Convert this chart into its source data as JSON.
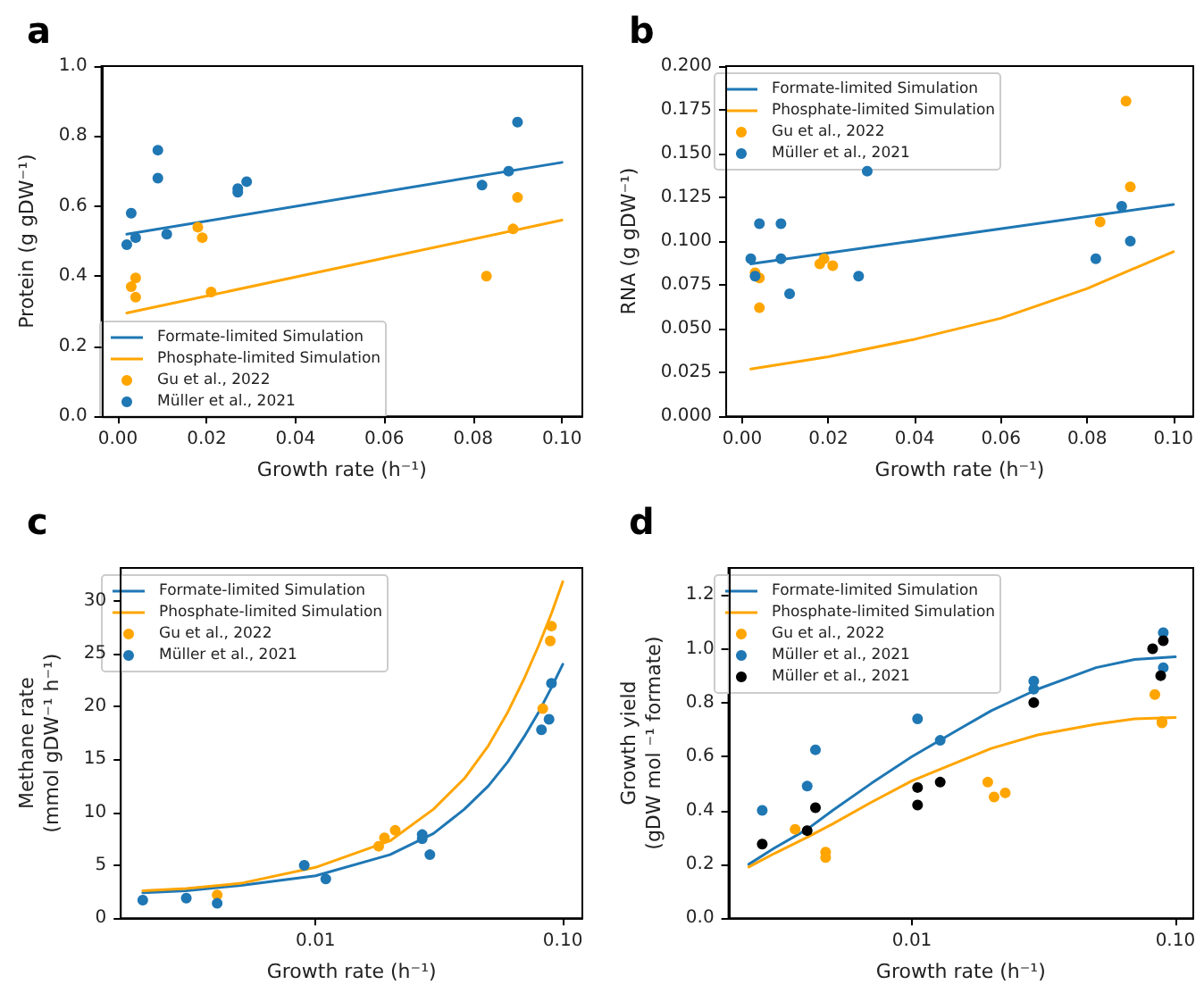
{
  "chart_data": [
    {
      "type": "scatter",
      "title": "a",
      "xlabel": "Growth rate (h⁻¹)",
      "ylabel": "Protein (g gDW⁻¹)",
      "xlim": [
        -0.0037,
        0.1046
      ],
      "ylim": [
        0,
        1
      ],
      "xticks": [
        {
          "value": 0,
          "label": "0.00"
        },
        {
          "value": 0.02,
          "label": "0.02"
        },
        {
          "value": 0.04,
          "label": "0.04"
        },
        {
          "value": 0.06,
          "label": "0.06"
        },
        {
          "value": 0.08,
          "label": "0.08"
        },
        {
          "value": 0.1,
          "label": "0.10"
        }
      ],
      "yticks": [
        {
          "value": 0,
          "label": "0.0"
        },
        0.2,
        0.4,
        0.6,
        0.8,
        {
          "value": 1,
          "label": "1.0"
        }
      ],
      "legend": "bottom left",
      "marker": "circle",
      "series": [
        {
          "name": "Formate-limited Simulation",
          "type": "line",
          "marker": "none",
          "color": "#1f77b4",
          "x": [
            0.002,
            0.1
          ],
          "values": [
            0.52,
            0.725
          ]
        },
        {
          "name": "Phosphate-limited Simulation",
          "type": "line",
          "marker": "none",
          "color": "#ffa500",
          "x": [
            0.002,
            0.1
          ],
          "values": [
            0.295,
            0.56
          ]
        },
        {
          "name": "Gu et al., 2022",
          "color": "#ffa500",
          "x": [
            0.003,
            0.004,
            0.004,
            0.018,
            0.019,
            0.021,
            0.083,
            0.089,
            0.09
          ],
          "values": [
            0.37,
            0.395,
            0.34,
            0.54,
            0.51,
            0.355,
            0.4,
            0.535,
            0.625
          ]
        },
        {
          "name": "Müller et al., 2021",
          "color": "#1f77b4",
          "x": [
            0.002,
            0.003,
            0.004,
            0.009,
            0.009,
            0.011,
            0.027,
            0.027,
            0.029,
            0.082,
            0.088,
            0.09
          ],
          "values": [
            0.49,
            0.58,
            0.51,
            0.76,
            0.68,
            0.52,
            0.65,
            0.64,
            0.67,
            0.66,
            0.7,
            0.84
          ]
        }
      ]
    },
    {
      "type": "scatter",
      "title": "b",
      "xlabel": "Growth rate (h⁻¹)",
      "ylabel": "RNA (g gDW⁻¹)",
      "xlim": [
        -0.0037,
        0.1046
      ],
      "ylim": [
        0,
        0.2
      ],
      "xticks": [
        {
          "value": 0,
          "label": "0.00"
        },
        {
          "value": 0.02,
          "label": "0.02"
        },
        {
          "value": 0.04,
          "label": "0.04"
        },
        {
          "value": 0.06,
          "label": "0.06"
        },
        {
          "value": 0.08,
          "label": "0.08"
        },
        {
          "value": 0.1,
          "label": "0.10"
        }
      ],
      "yticks": [
        {
          "value": 0,
          "label": "0.000"
        },
        0.025,
        {
          "value": 0.05,
          "label": "0.050"
        },
        0.075,
        {
          "value": 0.1,
          "label": "0.100"
        },
        0.125,
        {
          "value": 0.15,
          "label": "0.150"
        },
        0.175,
        {
          "value": 0.2,
          "label": "0.200"
        }
      ],
      "legend": "top left",
      "marker": "circle",
      "series": [
        {
          "name": "Formate-limited Simulation",
          "type": "line",
          "marker": "none",
          "color": "#1f77b4",
          "x": [
            0.002,
            0.1
          ],
          "values": [
            0.087,
            0.121
          ]
        },
        {
          "name": "Phosphate-limited Simulation",
          "type": "line",
          "marker": "none",
          "color": "#ffa500",
          "x": [
            0.002,
            0.02,
            0.04,
            0.06,
            0.08,
            0.1
          ],
          "values": [
            0.027,
            0.034,
            0.044,
            0.056,
            0.073,
            0.094
          ]
        },
        {
          "name": "Gu et al., 2022",
          "color": "#ffa500",
          "x": [
            0.003,
            0.004,
            0.004,
            0.018,
            0.019,
            0.021,
            0.083,
            0.089,
            0.09
          ],
          "values": [
            0.082,
            0.079,
            0.062,
            0.087,
            0.09,
            0.086,
            0.111,
            0.18,
            0.131
          ]
        },
        {
          "name": "Müller et al., 2021",
          "color": "#1f77b4",
          "x": [
            0.002,
            0.003,
            0.004,
            0.009,
            0.009,
            0.011,
            0.027,
            0.029,
            0.082,
            0.088,
            0.09
          ],
          "values": [
            0.09,
            0.08,
            0.11,
            0.11,
            0.09,
            0.07,
            0.08,
            0.14,
            0.09,
            0.12,
            0.1
          ]
        }
      ]
    },
    {
      "type": "scatter",
      "title": "c",
      "xlabel": "Growth rate (h⁻¹)",
      "ylabel": "Methane rate\n(mmol gDW⁻¹ h⁻¹)",
      "log": "x",
      "xlim": [
        0.00163,
        0.12
      ],
      "ylim": [
        0,
        33.1
      ],
      "xticks": [
        {
          "value": 0.01,
          "label": "0.01"
        },
        {
          "value": 0.1,
          "label": "0.10"
        }
      ],
      "yticks": [
        0,
        5,
        10,
        15,
        20,
        25,
        30
      ],
      "legend": "top left",
      "marker": "circle",
      "series": [
        {
          "name": "Formate-limited Simulation",
          "type": "line",
          "marker": "none",
          "color": "#1f77b4",
          "x": [
            0.002,
            0.003,
            0.005,
            0.01,
            0.02,
            0.03,
            0.04,
            0.05,
            0.06,
            0.07,
            0.08,
            0.09,
            0.1
          ],
          "values": [
            2.4,
            2.6,
            3.1,
            4.0,
            6.0,
            8.0,
            10.3,
            12.5,
            14.8,
            17.2,
            19.5,
            21.8,
            24.0
          ]
        },
        {
          "name": "Phosphate-limited Simulation",
          "type": "line",
          "marker": "none",
          "color": "#ffa500",
          "x": [
            0.002,
            0.003,
            0.005,
            0.01,
            0.02,
            0.03,
            0.04,
            0.05,
            0.06,
            0.07,
            0.08,
            0.09,
            0.1
          ],
          "values": [
            2.6,
            2.8,
            3.3,
            4.8,
            7.3,
            10.3,
            13.2,
            16.3,
            19.5,
            22.7,
            25.8,
            28.8,
            31.8
          ]
        },
        {
          "name": "Gu et al., 2022",
          "color": "#ffa500",
          "x": [
            0.004,
            0.018,
            0.019,
            0.021,
            0.083,
            0.089,
            0.09
          ],
          "values": [
            2.2,
            6.8,
            7.6,
            8.3,
            19.8,
            26.2,
            27.6
          ]
        },
        {
          "name": "Müller et al., 2021",
          "color": "#1f77b4",
          "x": [
            0.002,
            0.003,
            0.004,
            0.009,
            0.011,
            0.027,
            0.027,
            0.029,
            0.082,
            0.088,
            0.09
          ],
          "values": [
            1.7,
            1.9,
            1.4,
            5.0,
            3.7,
            7.5,
            7.9,
            6.0,
            17.8,
            18.8,
            22.2
          ]
        }
      ]
    },
    {
      "type": "scatter",
      "title": "d",
      "xlabel": "Growth rate (h⁻¹)",
      "ylabel": "Growth yield\n(gDW mol ⁻¹ formate)",
      "log": "x",
      "xlim": [
        0.00201,
        0.117
      ],
      "ylim": [
        0,
        1.3
      ],
      "xticks": [
        {
          "value": 0.01,
          "label": "0.01"
        },
        {
          "value": 0.1,
          "label": "0.10"
        }
      ],
      "yticks": [
        {
          "value": 0,
          "label": "0.0"
        },
        0.2,
        0.4,
        0.6,
        0.8,
        {
          "value": 1,
          "label": "1.0"
        },
        1.2
      ],
      "legend": "top left",
      "marker": "circle",
      "series": [
        {
          "name": "Formate-limited Simulation",
          "type": "line",
          "marker": "none",
          "color": "#1f77b4",
          "x": [
            0.0024,
            0.003,
            0.004,
            0.005,
            0.007,
            0.01,
            0.015,
            0.02,
            0.03,
            0.05,
            0.07,
            0.1
          ],
          "values": [
            0.2,
            0.26,
            0.33,
            0.4,
            0.5,
            0.6,
            0.7,
            0.77,
            0.85,
            0.93,
            0.96,
            0.97
          ]
        },
        {
          "name": "Phosphate-limited Simulation",
          "type": "line",
          "marker": "none",
          "color": "#ffa500",
          "x": [
            0.0024,
            0.003,
            0.004,
            0.005,
            0.007,
            0.01,
            0.015,
            0.02,
            0.03,
            0.05,
            0.07,
            0.1
          ],
          "values": [
            0.19,
            0.24,
            0.3,
            0.35,
            0.43,
            0.51,
            0.58,
            0.63,
            0.68,
            0.72,
            0.74,
            0.745
          ]
        },
        {
          "name": "Gu et al., 2022",
          "color": "#ffa500",
          "x": [
            0.0036,
            0.0047,
            0.0047,
            0.0194,
            0.0205,
            0.0226,
            0.0836,
            0.089,
            0.089
          ],
          "values": [
            0.33,
            0.245,
            0.225,
            0.505,
            0.45,
            0.465,
            0.83,
            0.725,
            0.73
          ]
        },
        {
          "name": "Müller et al., 2021",
          "color": "#1f77b4",
          "x": [
            0.0027,
            0.004,
            0.0043,
            0.0105,
            0.0128,
            0.029,
            0.029,
            0.09,
            0.09
          ],
          "values": [
            0.4,
            0.49,
            0.625,
            0.74,
            0.66,
            0.85,
            0.88,
            1.06,
            0.93
          ]
        },
        {
          "name": "Müller et al., 2021",
          "color": "#000000",
          "x": [
            0.0027,
            0.004,
            0.0043,
            0.0105,
            0.0105,
            0.0128,
            0.029,
            0.082,
            0.088,
            0.09
          ],
          "values": [
            0.275,
            0.325,
            0.41,
            0.485,
            0.42,
            0.505,
            0.8,
            1.0,
            0.9,
            1.03
          ]
        }
      ]
    }
  ]
}
